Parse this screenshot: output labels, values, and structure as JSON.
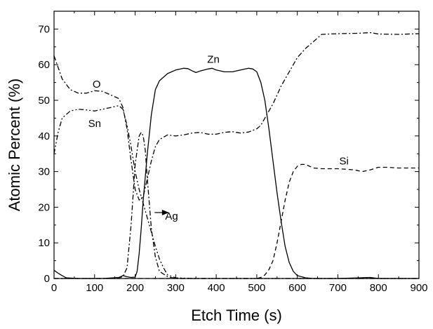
{
  "chart_data": {
    "type": "line",
    "xlabel": "Etch Time (s)",
    "ylabel": "Atomic Percent (%)",
    "xlim": [
      0,
      900
    ],
    "ylim": [
      0,
      75
    ],
    "xticks": [
      "0",
      "100",
      "200",
      "300",
      "400",
      "500",
      "600",
      "700",
      "800",
      "900"
    ],
    "yticks": [
      "0",
      "10",
      "20",
      "30",
      "40",
      "50",
      "60",
      "70"
    ],
    "grid": false,
    "series": [
      {
        "name": "O",
        "style": "dash-dot",
        "x": [
          0,
          20,
          40,
          60,
          80,
          100,
          120,
          140,
          160,
          170,
          180,
          190,
          200,
          210,
          220,
          230,
          240,
          250,
          260,
          280,
          300,
          320,
          340,
          360,
          380,
          400,
          420,
          440,
          460,
          480,
          500,
          510,
          520,
          540,
          560,
          580,
          600,
          620,
          640,
          660,
          700,
          750,
          780,
          800,
          850,
          900
        ],
        "y": [
          62.5,
          56,
          53,
          52,
          52,
          52.7,
          52.5,
          51.5,
          50.5,
          48,
          42,
          33,
          25,
          22,
          23,
          28,
          33,
          37,
          39,
          40.3,
          40,
          40.3,
          40.8,
          41,
          40.5,
          40.5,
          41,
          41.2,
          40.8,
          41.1,
          42,
          43,
          45,
          49,
          54,
          58,
          62,
          64.5,
          66.5,
          68.5,
          68.7,
          68.8,
          69,
          68.6,
          68.5,
          68.7
        ]
      },
      {
        "name": "Sn",
        "style": "dash-dot-dot",
        "x": [
          0,
          10,
          20,
          40,
          60,
          80,
          100,
          120,
          140,
          160,
          170,
          180,
          190,
          200,
          210,
          220,
          230,
          240,
          250,
          260,
          270,
          280,
          300,
          320,
          340,
          400,
          500,
          600,
          700,
          800,
          900
        ],
        "y": [
          35,
          41,
          45,
          47,
          47.5,
          47.3,
          47,
          47.5,
          48,
          48.5,
          47.5,
          43,
          37,
          30,
          25,
          21,
          17,
          13,
          9,
          5.5,
          3,
          1,
          0.2,
          0.1,
          0,
          0,
          0,
          0,
          0,
          0,
          0
        ]
      },
      {
        "name": "Ag",
        "style": "dash-dot",
        "x": [
          0,
          100,
          150,
          170,
          180,
          190,
          200,
          210,
          215,
          220,
          225,
          230,
          240,
          250,
          260,
          280,
          300,
          400,
          500,
          600,
          700,
          800,
          900
        ],
        "y": [
          0,
          0,
          0,
          0.5,
          3,
          15,
          32,
          40,
          41,
          40,
          36,
          28,
          14,
          6,
          2,
          0.5,
          0,
          0,
          0,
          0,
          0,
          0,
          0
        ]
      },
      {
        "name": "Zn",
        "style": "solid",
        "x": [
          0,
          10,
          20,
          30,
          60,
          120,
          160,
          170,
          180,
          190,
          200,
          205,
          210,
          215,
          220,
          230,
          240,
          250,
          260,
          280,
          300,
          320,
          330,
          340,
          350,
          360,
          380,
          390,
          400,
          420,
          440,
          460,
          480,
          490,
          500,
          510,
          520,
          530,
          540,
          550,
          560,
          570,
          580,
          590,
          600,
          620,
          640,
          700,
          780,
          800,
          900
        ],
        "y": [
          2.3,
          1.5,
          0.8,
          0.2,
          0,
          0,
          0.3,
          0.8,
          0.5,
          0.3,
          0.4,
          2,
          7,
          14,
          22,
          35,
          46,
          53,
          55.5,
          57.5,
          58.5,
          59,
          58.9,
          58.3,
          57.8,
          58.2,
          58.8,
          59,
          58.5,
          58,
          58,
          58.5,
          59,
          58.8,
          58,
          55,
          50,
          42,
          33,
          24,
          16,
          9,
          4.5,
          2,
          0.8,
          0.2,
          0,
          0,
          0.3,
          0,
          0
        ]
      },
      {
        "name": "Si",
        "style": "dashed",
        "x": [
          0,
          100,
          200,
          300,
          400,
          500,
          510,
          520,
          530,
          540,
          550,
          560,
          570,
          580,
          590,
          600,
          610,
          620,
          640,
          660,
          700,
          740,
          760,
          780,
          800,
          820,
          850,
          880,
          900
        ],
        "y": [
          0,
          0,
          0,
          0,
          0,
          0,
          0.3,
          1,
          2.5,
          5,
          10,
          16,
          22,
          27,
          30,
          31.5,
          32,
          32,
          31,
          30.8,
          30.8,
          30.5,
          30,
          30.5,
          31.2,
          31.2,
          31,
          31,
          31
        ]
      }
    ],
    "annotations": [
      {
        "text": "O",
        "x": 105,
        "y": 54.5
      },
      {
        "text": "Sn",
        "x": 100,
        "y": 43.5
      },
      {
        "text": "Zn",
        "x": 393,
        "y": 61.5
      },
      {
        "text": "Si",
        "x": 715,
        "y": 33
      },
      {
        "text": "Ag",
        "x": 290,
        "y": 17.5,
        "arrow_from": [
          268,
          18.5
        ],
        "arrow_to": [
          248,
          18.5
        ]
      }
    ]
  }
}
